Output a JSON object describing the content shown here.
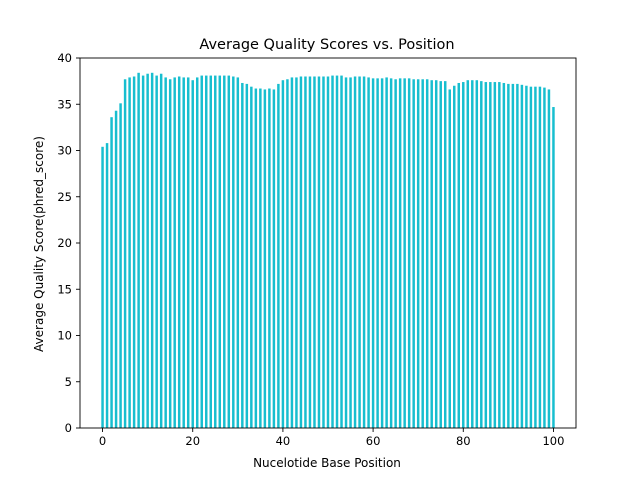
{
  "chart_data": {
    "type": "bar",
    "title": "Average Quality Scores vs. Position",
    "xlabel": "Nucelotide Base Position",
    "ylabel": "Average Quality Score(phred_score)",
    "xlim": [
      -5,
      105
    ],
    "ylim": [
      0,
      40
    ],
    "xticks": [
      0,
      20,
      40,
      60,
      80,
      100
    ],
    "yticks": [
      0,
      5,
      10,
      15,
      20,
      25,
      30,
      35,
      40
    ],
    "bar_color": "#17becf",
    "grid": false,
    "x": [
      0,
      1,
      2,
      3,
      4,
      5,
      6,
      7,
      8,
      9,
      10,
      11,
      12,
      13,
      14,
      15,
      16,
      17,
      18,
      19,
      20,
      21,
      22,
      23,
      24,
      25,
      26,
      27,
      28,
      29,
      30,
      31,
      32,
      33,
      34,
      35,
      36,
      37,
      38,
      39,
      40,
      41,
      42,
      43,
      44,
      45,
      46,
      47,
      48,
      49,
      50,
      51,
      52,
      53,
      54,
      55,
      56,
      57,
      58,
      59,
      60,
      61,
      62,
      63,
      64,
      65,
      66,
      67,
      68,
      69,
      70,
      71,
      72,
      73,
      74,
      75,
      76,
      77,
      78,
      79,
      80,
      81,
      82,
      83,
      84,
      85,
      86,
      87,
      88,
      89,
      90,
      91,
      92,
      93,
      94,
      95,
      96,
      97,
      98,
      99,
      100
    ],
    "values": [
      30.4,
      30.8,
      33.6,
      34.3,
      35.1,
      37.7,
      37.9,
      38.0,
      38.4,
      38.1,
      38.3,
      38.4,
      38.1,
      38.3,
      37.9,
      37.7,
      37.9,
      38.0,
      37.9,
      37.9,
      37.6,
      37.9,
      38.1,
      38.1,
      38.1,
      38.1,
      38.1,
      38.1,
      38.1,
      38.0,
      37.9,
      37.3,
      37.2,
      36.9,
      36.7,
      36.7,
      36.6,
      36.7,
      36.6,
      37.2,
      37.6,
      37.7,
      37.9,
      37.9,
      38.0,
      38.0,
      38.0,
      38.0,
      38.0,
      38.0,
      38.0,
      38.1,
      38.1,
      38.1,
      37.9,
      37.9,
      38.0,
      38.0,
      38.0,
      37.9,
      37.8,
      37.8,
      37.8,
      37.9,
      37.8,
      37.7,
      37.8,
      37.8,
      37.8,
      37.7,
      37.7,
      37.7,
      37.7,
      37.6,
      37.6,
      37.5,
      37.5,
      36.6,
      37.0,
      37.3,
      37.4,
      37.6,
      37.6,
      37.6,
      37.5,
      37.4,
      37.4,
      37.4,
      37.4,
      37.3,
      37.2,
      37.2,
      37.2,
      37.1,
      37.0,
      36.9,
      36.9,
      36.9,
      36.8,
      36.6,
      34.7
    ]
  }
}
